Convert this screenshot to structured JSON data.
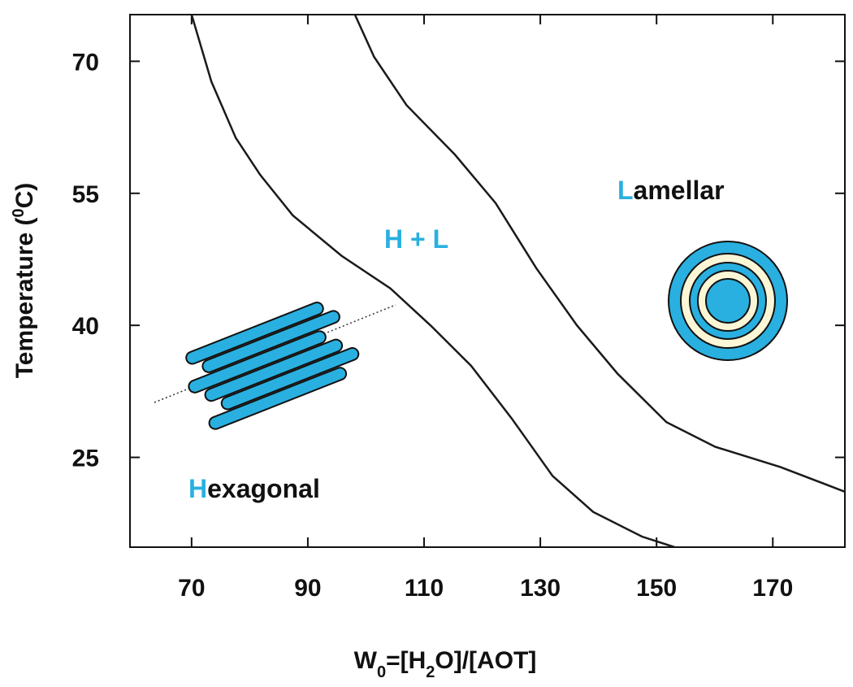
{
  "chart_data": {
    "type": "line",
    "xlabel_parts": [
      {
        "text": "W"
      },
      {
        "text": "0",
        "sub": true
      },
      {
        "text": "=[H"
      },
      {
        "text": "2",
        "sub": true
      },
      {
        "text": "O]/[AOT]"
      }
    ],
    "ylabel_parts": [
      {
        "text": "Temperature ("
      },
      {
        "text": "0",
        "sup": true
      },
      {
        "text": "C)"
      }
    ],
    "xlim": [
      59.4,
      182.4
    ],
    "xticks": [
      70,
      90,
      110,
      130,
      150,
      170
    ],
    "ylim": [
      14.8,
      75.3
    ],
    "yticks": [
      25,
      40,
      55,
      70
    ],
    "series": [
      {
        "color": "#1a1a1a",
        "x": [
          70.0,
          73.4,
          77.6,
          81.8,
          87.4,
          95.8,
          104.2,
          111.1,
          118.1,
          125.1,
          132.1,
          139.1,
          147.5,
          153.1
        ],
        "values": [
          75.3,
          67.7,
          61.3,
          57.1,
          52.5,
          47.9,
          44.2,
          40.0,
          35.4,
          29.4,
          22.9,
          18.8,
          16.0,
          14.8
        ]
      },
      {
        "color": "#1a1a1a",
        "x": [
          98.1,
          101.4,
          107.0,
          115.3,
          122.3,
          129.3,
          136.3,
          143.3,
          151.7,
          160.1,
          171.3,
          182.4
        ],
        "values": [
          75.3,
          70.5,
          65.0,
          59.4,
          53.9,
          46.5,
          40.0,
          34.5,
          29.0,
          26.2,
          23.9,
          21.1
        ]
      }
    ],
    "annotations": [
      {
        "text": "Lamellar",
        "highlight_first": true
      },
      {
        "text": "H + L",
        "highlight_all": true
      },
      {
        "text": "Hexagonal",
        "highlight_first": true
      }
    ],
    "highlight_color": "#2ab0e0"
  }
}
